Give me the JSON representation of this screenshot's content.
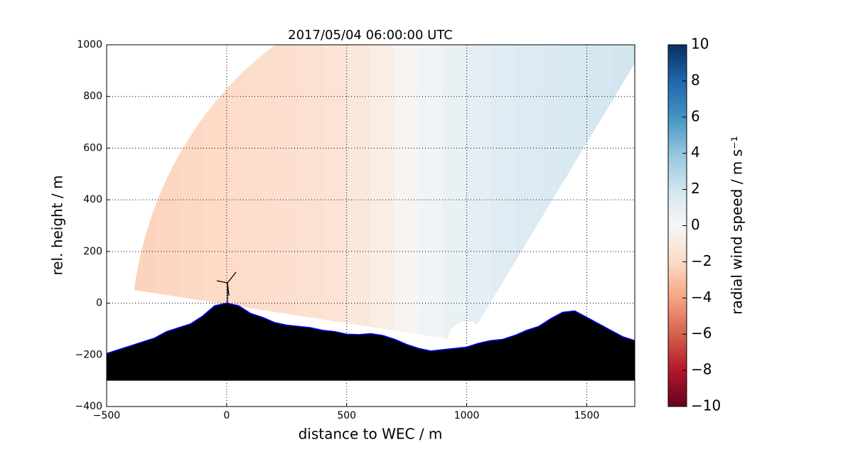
{
  "chart_data": {
    "type": "rhi",
    "title": "2017/05/04 06:00:00 UTC",
    "x_label": "distance to WEC / m",
    "y_label": "rel. height / m",
    "xlim": [
      -500,
      1700
    ],
    "ylim": [
      -400,
      1000
    ],
    "xticks": [
      {
        "value": -500,
        "label": "−500"
      },
      0,
      500,
      1000,
      1500
    ],
    "yticks": [
      {
        "value": -400,
        "label": "−400"
      },
      {
        "value": -200,
        "label": "−200"
      },
      0,
      200,
      400,
      600,
      800,
      1000
    ],
    "grid": true,
    "scan": {
      "origin": [
        1000,
        -150
      ],
      "r_min": 80,
      "r_max": 1400,
      "elevation": [
        57,
        171.75
      ]
    },
    "field": {
      "xbins": [
        -500,
        -400,
        -300,
        -200,
        -100,
        0,
        100,
        200,
        300,
        400,
        500,
        600,
        700,
        800,
        900,
        1000,
        1100,
        1200,
        1300,
        1400,
        1500,
        1600,
        1700
      ],
      "values": [
        -2.3,
        -2.3,
        -2.2,
        -2.1,
        -2.0,
        -1.9,
        -1.8,
        -1.7,
        -1.6,
        -1.4,
        -1.1,
        -0.7,
        -0.2,
        0.3,
        0.7,
        1.0,
        1.2,
        1.4,
        1.5,
        1.6,
        1.8,
        1.9
      ]
    },
    "terrain": {
      "x": [
        -500,
        -450,
        -400,
        -350,
        -300,
        -250,
        -200,
        -150,
        -100,
        -50,
        0,
        50,
        100,
        150,
        200,
        250,
        300,
        350,
        400,
        450,
        500,
        550,
        600,
        650,
        700,
        750,
        800,
        850,
        900,
        950,
        1000,
        1050,
        1100,
        1150,
        1200,
        1250,
        1300,
        1350,
        1400,
        1450,
        1500,
        1550,
        1600,
        1650,
        1700
      ],
      "y": [
        -195,
        -180,
        -165,
        -150,
        -135,
        -110,
        -95,
        -80,
        -50,
        -10,
        0,
        -10,
        -40,
        -55,
        -75,
        -85,
        -90,
        -95,
        -105,
        -110,
        -120,
        -122,
        -118,
        -125,
        -140,
        -160,
        -175,
        -185,
        -180,
        -175,
        -170,
        -155,
        -145,
        -140,
        -125,
        -105,
        -90,
        -60,
        -35,
        -30,
        -55,
        -80,
        -105,
        -130,
        -145
      ],
      "floor": -300,
      "color": "#000000",
      "edge_color": "#0000ff"
    },
    "colorbar": {
      "label": "radial wind speed / m s⁻¹",
      "lim": [
        -10,
        10
      ],
      "ticks": [
        {
          "value": -10,
          "label": "−10"
        },
        {
          "value": -8,
          "label": "−8"
        },
        {
          "value": -6,
          "label": "−6"
        },
        {
          "value": -4,
          "label": "−4"
        },
        {
          "value": -2,
          "label": "−2"
        },
        0,
        2,
        4,
        6,
        8,
        10
      ],
      "colormap": [
        "#67001f",
        "#b2182b",
        "#d6604d",
        "#f4a582",
        "#fddbc7",
        "#f7f7f7",
        "#d1e5f0",
        "#92c5de",
        "#4393c3",
        "#2166ac",
        "#053061"
      ]
    }
  }
}
